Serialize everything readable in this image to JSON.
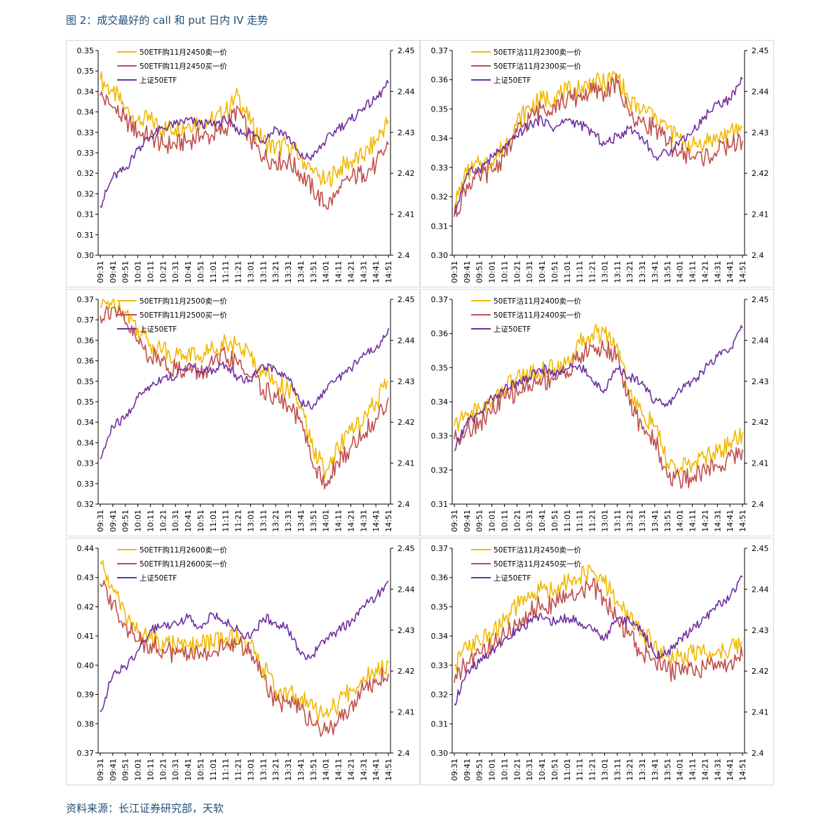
{
  "page": {
    "title": "图 2：成交最好的 call 和 put 日内 IV 走势",
    "source": "资料来源：长江证券研究部，天软"
  },
  "colors": {
    "sell": "#f2b800",
    "buy": "#c0504d",
    "index": "#7030a0"
  },
  "chart_data": [
    {
      "type": "line",
      "x": [
        "09:31",
        "09:41",
        "09:51",
        "10:01",
        "10:11",
        "10:21",
        "10:31",
        "10:41",
        "10:51",
        "11:01",
        "11:11",
        "11:21",
        "13:01",
        "13:11",
        "13:21",
        "13:31",
        "13:41",
        "13:51",
        "14:01",
        "14:11",
        "14:21",
        "14:31",
        "14:41",
        "14:51"
      ],
      "y_ticks": [
        "0.35",
        "0.35",
        "0.34",
        "0.34",
        "0.33",
        "0.33",
        "0.32",
        "0.32",
        "0.31",
        "0.31",
        "0.30"
      ],
      "y2_ticks": [
        "2.45",
        "2.44",
        "2.43",
        "2.42",
        "2.41",
        "2.4"
      ],
      "ylim": [
        0.3,
        0.35
      ],
      "y2lim": [
        2.4,
        2.45
      ],
      "series": [
        {
          "name": "50ETF购11月2450卖一价",
          "axis": "left",
          "color": "#f2b800",
          "values": [
            0.343,
            0.34,
            0.336,
            0.333,
            0.333,
            0.331,
            0.331,
            0.332,
            0.333,
            0.333,
            0.335,
            0.339,
            0.332,
            0.328,
            0.326,
            0.327,
            0.324,
            0.32,
            0.318,
            0.321,
            0.323,
            0.324,
            0.328,
            0.333
          ]
        },
        {
          "name": "50ETF购11月2450买一价",
          "axis": "left",
          "color": "#c0504d",
          "values": [
            0.339,
            0.336,
            0.333,
            0.33,
            0.329,
            0.327,
            0.327,
            0.328,
            0.329,
            0.329,
            0.331,
            0.336,
            0.328,
            0.324,
            0.323,
            0.323,
            0.32,
            0.316,
            0.312,
            0.315,
            0.319,
            0.32,
            0.322,
            0.327
          ]
        },
        {
          "name": "上证50ETF",
          "axis": "right",
          "color": "#7030a0",
          "values": [
            2.412,
            2.419,
            2.421,
            2.426,
            2.429,
            2.431,
            2.432,
            2.433,
            2.432,
            2.432,
            2.433,
            2.43,
            2.43,
            2.428,
            2.431,
            2.429,
            2.424,
            2.424,
            2.428,
            2.431,
            2.433,
            2.436,
            2.438,
            2.442
          ]
        }
      ]
    },
    {
      "type": "line",
      "x": [
        "09:31",
        "09:41",
        "09:51",
        "10:01",
        "10:11",
        "10:21",
        "10:31",
        "10:41",
        "10:51",
        "11:01",
        "11:11",
        "11:21",
        "13:01",
        "13:11",
        "13:21",
        "13:31",
        "13:41",
        "13:51",
        "14:01",
        "14:11",
        "14:21",
        "14:31",
        "14:41",
        "14:51"
      ],
      "y_ticks": [
        "0.37",
        "0.36",
        "0.35",
        "0.34",
        "0.33",
        "0.32",
        "0.31",
        "0.30"
      ],
      "y2_ticks": [
        "2.45",
        "2.44",
        "2.43",
        "2.42",
        "2.41",
        "2.4"
      ],
      "ylim": [
        0.3,
        0.375
      ],
      "y2lim": [
        2.4,
        2.45
      ],
      "series": [
        {
          "name": "50ETF沽11月2300卖一价",
          "axis": "left",
          "color": "#f2b800",
          "values": [
            0.318,
            0.33,
            0.333,
            0.334,
            0.34,
            0.349,
            0.354,
            0.357,
            0.358,
            0.36,
            0.361,
            0.363,
            0.363,
            0.366,
            0.356,
            0.353,
            0.352,
            0.346,
            0.343,
            0.34,
            0.342,
            0.343,
            0.345,
            0.347
          ]
        },
        {
          "name": "50ETF沽11月2300买一价",
          "axis": "left",
          "color": "#c0504d",
          "values": [
            0.314,
            0.326,
            0.329,
            0.331,
            0.336,
            0.345,
            0.35,
            0.354,
            0.355,
            0.357,
            0.358,
            0.36,
            0.36,
            0.363,
            0.351,
            0.349,
            0.347,
            0.341,
            0.338,
            0.336,
            0.336,
            0.338,
            0.34,
            0.342
          ]
        },
        {
          "name": "上证50ETF",
          "axis": "right",
          "color": "#7030a0",
          "values": [
            2.41,
            2.42,
            2.421,
            2.424,
            2.426,
            2.429,
            2.432,
            2.433,
            2.431,
            2.433,
            2.432,
            2.43,
            2.427,
            2.429,
            2.431,
            2.429,
            2.424,
            2.425,
            2.428,
            2.43,
            2.434,
            2.437,
            2.438,
            2.443
          ]
        }
      ]
    },
    {
      "type": "line",
      "x": [
        "09:31",
        "09:41",
        "09:51",
        "10:01",
        "10:11",
        "10:21",
        "10:31",
        "10:41",
        "10:51",
        "11:01",
        "11:11",
        "11:21",
        "13:01",
        "13:11",
        "13:21",
        "13:31",
        "13:41",
        "13:51",
        "14:01",
        "14:11",
        "14:21",
        "14:31",
        "14:41",
        "14:51"
      ],
      "y_ticks": [
        "0.37",
        "0.37",
        "0.36",
        "0.36",
        "0.35",
        "0.35",
        "0.34",
        "0.34",
        "0.33",
        "0.33",
        "0.32"
      ],
      "y2_ticks": [
        "2.45",
        "2.44",
        "2.43",
        "2.42",
        "2.41",
        "2.4"
      ],
      "ylim": [
        0.32,
        0.37
      ],
      "y2lim": [
        2.4,
        2.45
      ],
      "series": [
        {
          "name": "50ETF购11月2500卖一价",
          "axis": "left",
          "color": "#f2b800",
          "values": [
            0.368,
            0.37,
            0.367,
            0.363,
            0.359,
            0.358,
            0.356,
            0.357,
            0.356,
            0.358,
            0.36,
            0.359,
            0.356,
            0.352,
            0.35,
            0.348,
            0.344,
            0.333,
            0.328,
            0.334,
            0.338,
            0.34,
            0.345,
            0.35
          ]
        },
        {
          "name": "50ETF购11月2500买一价",
          "axis": "left",
          "color": "#c0504d",
          "values": [
            0.366,
            0.368,
            0.364,
            0.36,
            0.356,
            0.355,
            0.353,
            0.353,
            0.352,
            0.354,
            0.356,
            0.354,
            0.351,
            0.348,
            0.346,
            0.344,
            0.34,
            0.329,
            0.325,
            0.33,
            0.334,
            0.337,
            0.341,
            0.346
          ]
        },
        {
          "name": "上证50ETF",
          "axis": "right",
          "color": "#7030a0",
          "values": [
            2.411,
            2.419,
            2.421,
            2.426,
            2.429,
            2.431,
            2.431,
            2.434,
            2.432,
            2.433,
            2.434,
            2.431,
            2.43,
            2.434,
            2.433,
            2.431,
            2.425,
            2.424,
            2.428,
            2.431,
            2.433,
            2.437,
            2.438,
            2.443
          ]
        }
      ]
    },
    {
      "type": "line",
      "x": [
        "09:31",
        "09:41",
        "09:51",
        "10:01",
        "10:11",
        "10:21",
        "10:31",
        "10:41",
        "10:51",
        "11:01",
        "11:11",
        "11:21",
        "13:01",
        "13:11",
        "13:21",
        "13:31",
        "13:41",
        "13:51",
        "14:01",
        "14:11",
        "14:21",
        "14:31",
        "14:41",
        "14:51"
      ],
      "y_ticks": [
        "0.37",
        "0.36",
        "0.35",
        "0.34",
        "0.33",
        "0.32",
        "0.31"
      ],
      "y2_ticks": [
        "2.45",
        "2.44",
        "2.43",
        "2.42",
        "2.41",
        "2.4"
      ],
      "ylim": [
        0.31,
        0.37
      ],
      "y2lim": [
        2.4,
        2.45
      ],
      "series": [
        {
          "name": "50ETF沽11月2400卖一价",
          "axis": "left",
          "color": "#f2b800",
          "values": [
            0.333,
            0.336,
            0.338,
            0.34,
            0.344,
            0.347,
            0.348,
            0.349,
            0.35,
            0.352,
            0.357,
            0.36,
            0.36,
            0.357,
            0.343,
            0.336,
            0.333,
            0.322,
            0.32,
            0.322,
            0.324,
            0.325,
            0.328,
            0.331
          ]
        },
        {
          "name": "50ETF沽11月2400买一价",
          "axis": "left",
          "color": "#c0504d",
          "values": [
            0.329,
            0.332,
            0.334,
            0.337,
            0.341,
            0.343,
            0.345,
            0.346,
            0.347,
            0.349,
            0.353,
            0.356,
            0.355,
            0.354,
            0.339,
            0.332,
            0.329,
            0.318,
            0.317,
            0.318,
            0.32,
            0.321,
            0.324,
            0.326
          ]
        },
        {
          "name": "上证50ETF",
          "axis": "right",
          "color": "#7030a0",
          "values": [
            2.413,
            2.42,
            2.422,
            2.426,
            2.428,
            2.43,
            2.431,
            2.433,
            2.432,
            2.433,
            2.434,
            2.43,
            2.428,
            2.433,
            2.431,
            2.43,
            2.425,
            2.424,
            2.428,
            2.43,
            2.433,
            2.436,
            2.438,
            2.443
          ]
        }
      ]
    },
    {
      "type": "line",
      "x": [
        "09:31",
        "09:41",
        "09:51",
        "10:01",
        "10:11",
        "10:21",
        "10:31",
        "10:41",
        "10:51",
        "11:01",
        "11:11",
        "11:21",
        "13:01",
        "13:11",
        "13:21",
        "13:31",
        "13:41",
        "13:51",
        "14:01",
        "14:11",
        "14:21",
        "14:31",
        "14:41",
        "14:51"
      ],
      "y_ticks": [
        "0.44",
        "0.43",
        "0.42",
        "0.41",
        "0.40",
        "0.39",
        "0.38",
        "0.37"
      ],
      "y2_ticks": [
        "2.45",
        "2.44",
        "2.43",
        "2.42",
        "2.41",
        "2.4"
      ],
      "ylim": [
        0.37,
        0.445
      ],
      "y2lim": [
        2.4,
        2.45
      ],
      "series": [
        {
          "name": "50ETF购11月2600卖一价",
          "axis": "left",
          "color": "#f2b800",
          "values": [
            0.44,
            0.43,
            0.421,
            0.414,
            0.412,
            0.411,
            0.409,
            0.409,
            0.41,
            0.41,
            0.412,
            0.412,
            0.41,
            0.401,
            0.393,
            0.392,
            0.39,
            0.386,
            0.384,
            0.388,
            0.393,
            0.398,
            0.401,
            0.403
          ]
        },
        {
          "name": "50ETF购11月2600买一价",
          "axis": "left",
          "color": "#c0504d",
          "values": [
            0.432,
            0.425,
            0.417,
            0.411,
            0.41,
            0.408,
            0.406,
            0.406,
            0.407,
            0.407,
            0.409,
            0.41,
            0.408,
            0.398,
            0.389,
            0.388,
            0.386,
            0.38,
            0.378,
            0.382,
            0.388,
            0.393,
            0.397,
            0.399
          ]
        },
        {
          "name": "上证50ETF",
          "axis": "right",
          "color": "#7030a0",
          "values": [
            2.41,
            2.419,
            2.421,
            2.425,
            2.43,
            2.431,
            2.432,
            2.433,
            2.431,
            2.434,
            2.432,
            2.43,
            2.428,
            2.433,
            2.432,
            2.43,
            2.424,
            2.424,
            2.428,
            2.43,
            2.432,
            2.436,
            2.438,
            2.442
          ]
        }
      ]
    },
    {
      "type": "line",
      "x": [
        "09:31",
        "09:41",
        "09:51",
        "10:01",
        "10:11",
        "10:21",
        "10:31",
        "10:41",
        "10:51",
        "11:01",
        "11:11",
        "11:21",
        "13:01",
        "13:11",
        "13:21",
        "13:31",
        "13:41",
        "13:51",
        "14:01",
        "14:11",
        "14:21",
        "14:31",
        "14:41",
        "14:51"
      ],
      "y_ticks": [
        "0.37",
        "0.36",
        "0.35",
        "0.34",
        "0.33",
        "0.32",
        "0.31",
        "0.30"
      ],
      "y2_ticks": [
        "2.45",
        "2.44",
        "2.43",
        "2.42",
        "2.41",
        "2.4"
      ],
      "ylim": [
        0.3,
        0.37
      ],
      "y2lim": [
        2.4,
        2.45
      ],
      "series": [
        {
          "name": "50ETF沽11月2450卖一价",
          "axis": "left",
          "color": "#f2b800",
          "values": [
            0.33,
            0.336,
            0.338,
            0.341,
            0.345,
            0.35,
            0.353,
            0.356,
            0.356,
            0.358,
            0.36,
            0.362,
            0.358,
            0.352,
            0.346,
            0.34,
            0.338,
            0.333,
            0.333,
            0.334,
            0.334,
            0.335,
            0.336,
            0.338
          ]
        },
        {
          "name": "50ETF沽11月2450买一价",
          "axis": "left",
          "color": "#c0504d",
          "values": [
            0.324,
            0.331,
            0.334,
            0.337,
            0.34,
            0.344,
            0.348,
            0.351,
            0.351,
            0.353,
            0.355,
            0.357,
            0.352,
            0.346,
            0.34,
            0.334,
            0.332,
            0.328,
            0.328,
            0.329,
            0.329,
            0.33,
            0.331,
            0.333
          ]
        },
        {
          "name": "上证50ETF",
          "axis": "right",
          "color": "#7030a0",
          "values": [
            2.412,
            2.42,
            2.422,
            2.425,
            2.428,
            2.43,
            2.432,
            2.433,
            2.432,
            2.433,
            2.432,
            2.43,
            2.428,
            2.433,
            2.432,
            2.43,
            2.424,
            2.424,
            2.428,
            2.43,
            2.433,
            2.436,
            2.438,
            2.443
          ]
        }
      ]
    }
  ]
}
